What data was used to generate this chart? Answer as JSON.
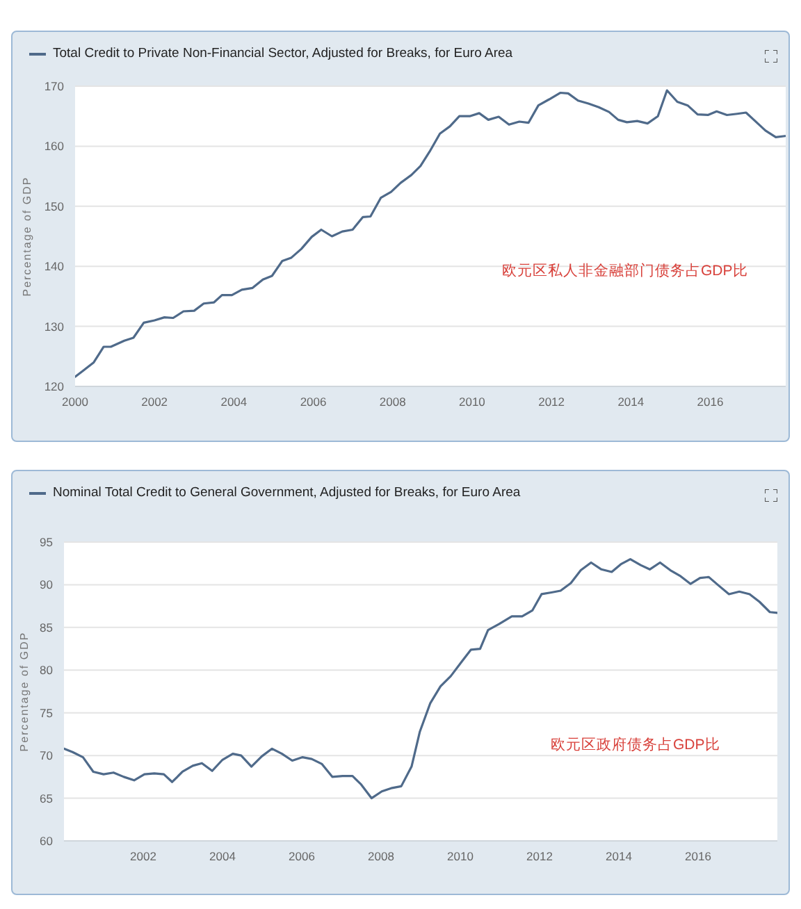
{
  "chart_data": [
    {
      "type": "line",
      "ylabel": "Percentage of GDP",
      "legend": "top left",
      "grid": "y",
      "marker": "none",
      "annotations": [
        "欧元区私人非金融部门债务占GDP比"
      ],
      "xlim": [
        2000,
        2017.9
      ],
      "xticks": [
        2000,
        2002,
        2004,
        2006,
        2008,
        2010,
        2012,
        2014,
        2016
      ],
      "ylim": [
        120,
        170
      ],
      "yticks": [
        120,
        130,
        140,
        150,
        160,
        170
      ],
      "x": [
        2000.0,
        2000.2,
        2000.47,
        2000.72,
        2000.9,
        2001.24,
        2001.47,
        2001.73,
        2002.0,
        2002.25,
        2002.47,
        2002.73,
        2003.0,
        2003.24,
        2003.5,
        2003.7,
        2003.95,
        2004.2,
        2004.47,
        2004.73,
        2004.96,
        2005.22,
        2005.44,
        2005.7,
        2005.96,
        2006.2,
        2006.47,
        2006.73,
        2006.99,
        2007.25,
        2007.44,
        2007.7,
        2007.96,
        2008.2,
        2008.47,
        2008.7,
        2008.93,
        2009.19,
        2009.44,
        2009.68,
        2009.94,
        2010.18,
        2010.41,
        2010.67,
        2010.93,
        2011.19,
        2011.42,
        2011.67,
        2011.94,
        2012.22,
        2012.42,
        2012.67,
        2012.93,
        2013.19,
        2013.45,
        2013.68,
        2013.9,
        2014.16,
        2014.42,
        2014.68,
        2014.91,
        2015.17,
        2015.43,
        2015.68,
        2015.94,
        2016.16,
        2016.42,
        2016.68,
        2016.9,
        2017.13,
        2017.39,
        2017.65,
        2017.88
      ],
      "series": [
        {
          "name": "Total Credit to Private Non-Financial Sector, Adjusted for Breaks, for Euro Area",
          "color": "#4f6a8a",
          "values": [
            121.6,
            122.6,
            124.0,
            126.6,
            126.6,
            127.6,
            128.1,
            130.6,
            131.0,
            131.5,
            131.4,
            132.5,
            132.6,
            133.8,
            134.0,
            135.2,
            135.2,
            136.1,
            136.4,
            137.8,
            138.4,
            140.9,
            141.4,
            142.9,
            144.9,
            146.1,
            145.0,
            145.8,
            146.1,
            148.2,
            148.3,
            151.4,
            152.4,
            153.9,
            155.2,
            156.7,
            159.1,
            162.1,
            163.3,
            165.0,
            165.0,
            165.5,
            164.4,
            164.9,
            163.6,
            164.1,
            163.9,
            166.8,
            167.8,
            168.9,
            168.8,
            167.6,
            167.1,
            166.5,
            165.7,
            164.4,
            164.0,
            164.2,
            163.8,
            165.0,
            169.3,
            167.4,
            166.8,
            165.3,
            165.2,
            165.8,
            165.2,
            165.4,
            165.6,
            164.2,
            162.6,
            161.5,
            161.7
          ]
        }
      ]
    },
    {
      "type": "line",
      "ylabel": "Percentage of GDP",
      "legend": "top left",
      "grid": "y",
      "marker": "none",
      "annotations": [
        "欧元区政府债务占GDP比"
      ],
      "xlim": [
        2000,
        2018
      ],
      "xticks": [
        2002,
        2004,
        2006,
        2008,
        2010,
        2012,
        2014,
        2016
      ],
      "ylim": [
        60,
        95
      ],
      "yticks": [
        60,
        65,
        70,
        75,
        80,
        85,
        90,
        95
      ],
      "x": [
        2000.0,
        2000.22,
        2000.48,
        2000.74,
        2001.0,
        2001.25,
        2001.51,
        2001.77,
        2002.03,
        2002.28,
        2002.52,
        2002.73,
        2002.99,
        2003.25,
        2003.48,
        2003.74,
        2004.0,
        2004.26,
        2004.47,
        2004.73,
        2004.99,
        2005.25,
        2005.5,
        2005.76,
        2006.02,
        2006.25,
        2006.51,
        2006.77,
        2007.03,
        2007.28,
        2007.5,
        2007.76,
        2008.02,
        2008.28,
        2008.51,
        2008.77,
        2008.98,
        2009.24,
        2009.5,
        2009.76,
        2010.02,
        2010.27,
        2010.5,
        2010.7,
        2010.98,
        2011.3,
        2011.56,
        2011.82,
        2012.05,
        2012.3,
        2012.53,
        2012.79,
        2013.04,
        2013.3,
        2013.56,
        2013.82,
        2014.05,
        2014.29,
        2014.55,
        2014.78,
        2015.04,
        2015.3,
        2015.56,
        2015.81,
        2016.05,
        2016.27,
        2016.52,
        2016.78,
        2017.04,
        2017.3,
        2017.55,
        2017.81,
        2018.0
      ],
      "series": [
        {
          "name": "Nominal Total Credit to General Government, Adjusted for Breaks, for Euro Area",
          "color": "#4f6a8a",
          "values": [
            70.8,
            70.4,
            69.8,
            68.1,
            67.8,
            68.0,
            67.5,
            67.1,
            67.8,
            67.9,
            67.8,
            66.9,
            68.1,
            68.8,
            69.1,
            68.2,
            69.5,
            70.2,
            70.0,
            68.7,
            69.9,
            70.8,
            70.2,
            69.4,
            69.8,
            69.6,
            69.0,
            67.5,
            67.6,
            67.6,
            66.6,
            65.0,
            65.8,
            66.2,
            66.4,
            68.7,
            72.8,
            76.1,
            78.1,
            79.3,
            80.9,
            82.4,
            82.5,
            84.7,
            85.4,
            86.3,
            86.3,
            87.0,
            88.9,
            89.1,
            89.3,
            90.2,
            91.7,
            92.6,
            91.8,
            91.5,
            92.4,
            93.0,
            92.3,
            91.8,
            92.6,
            91.7,
            91.0,
            90.1,
            90.8,
            90.9,
            89.9,
            88.9,
            89.2,
            88.9,
            88.0,
            86.8,
            86.7
          ]
        }
      ]
    }
  ]
}
